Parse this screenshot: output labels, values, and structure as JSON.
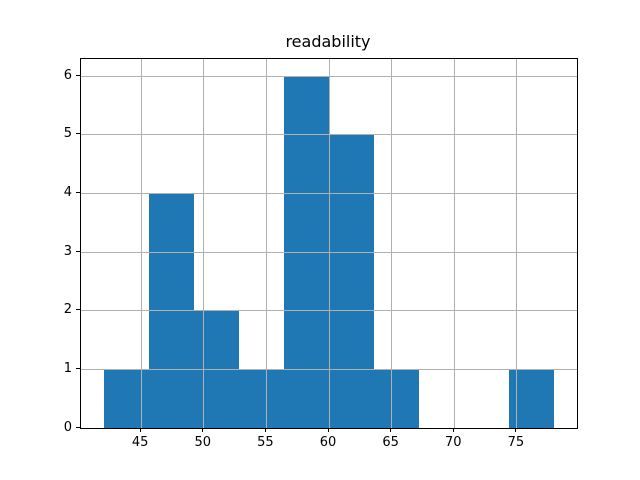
{
  "chart_data": {
    "type": "bar",
    "subtype": "histogram",
    "title": "readability",
    "xlabel": "",
    "ylabel": "",
    "bin_edges": [
      42.0,
      45.6,
      49.2,
      52.8,
      56.4,
      60.0,
      63.6,
      67.2,
      70.8,
      74.4,
      78.0
    ],
    "counts": [
      1,
      4,
      2,
      1,
      6,
      5,
      1,
      0,
      0,
      1
    ],
    "xlim": [
      40.2,
      79.8
    ],
    "ylim": [
      0,
      6.3
    ],
    "x_ticks": [
      45,
      50,
      55,
      60,
      65,
      70,
      75
    ],
    "y_ticks": [
      0,
      1,
      2,
      3,
      4,
      5,
      6
    ],
    "grid": true,
    "grid_above_bars": true,
    "legend": null,
    "colors": {
      "bar_fill": "#1f77b4",
      "grid_line": "#b0b0b0",
      "spine": "#000000",
      "background": "#ffffff"
    }
  }
}
